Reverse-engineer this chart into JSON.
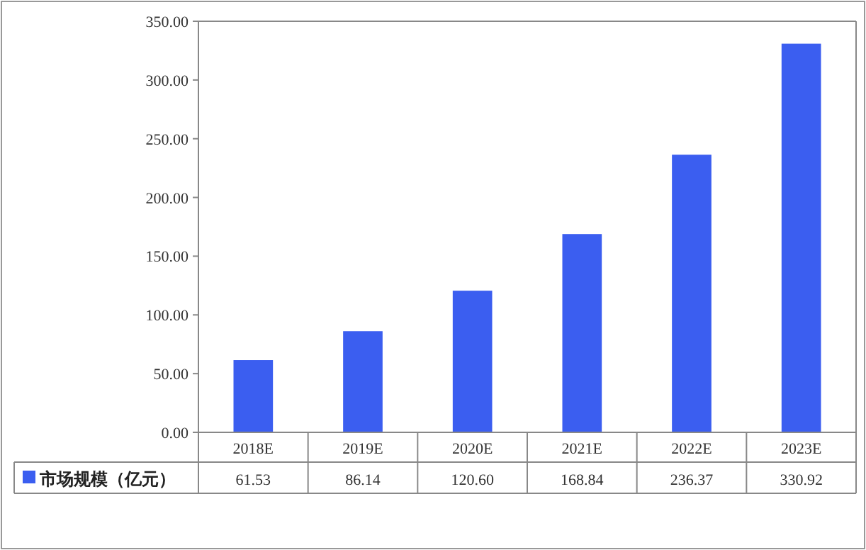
{
  "chart_data": {
    "type": "bar",
    "categories": [
      "2018E",
      "2019E",
      "2020E",
      "2021E",
      "2022E",
      "2023E"
    ],
    "series": [
      {
        "name": "市场规模（亿元）",
        "color": "#3b5ef0",
        "values": [
          61.53,
          86.14,
          120.6,
          168.84,
          236.37,
          330.92
        ],
        "value_labels": [
          "61.53",
          "86.14",
          "120.60",
          "168.84",
          "236.37",
          "330.92"
        ]
      }
    ],
    "ylim": [
      0,
      350
    ],
    "yticks": [
      {
        "value": 0,
        "label": "0.00"
      },
      {
        "value": 50,
        "label": "50.00"
      },
      {
        "value": 100,
        "label": "100.00"
      },
      {
        "value": 150,
        "label": "150.00"
      },
      {
        "value": 200,
        "label": "200.00"
      },
      {
        "value": 250,
        "label": "250.00"
      },
      {
        "value": 300,
        "label": "300.00"
      },
      {
        "value": 350,
        "label": "350.00"
      }
    ],
    "grid": false,
    "legend": "bottom left"
  }
}
